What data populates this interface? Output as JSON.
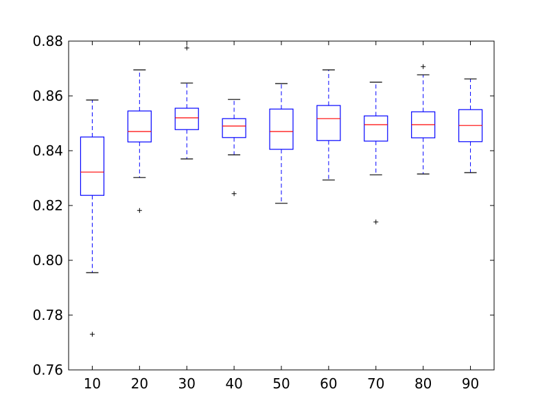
{
  "chart_data": {
    "type": "box",
    "title": "",
    "xlabel": "",
    "ylabel": "",
    "categories": [
      "10",
      "20",
      "30",
      "40",
      "50",
      "60",
      "70",
      "80",
      "90"
    ],
    "ylim": [
      0.76,
      0.88
    ],
    "yticks": [
      "0.76",
      "0.78",
      "0.80",
      "0.82",
      "0.84",
      "0.86",
      "0.88"
    ],
    "ytick_values": [
      0.76,
      0.78,
      0.8,
      0.82,
      0.84,
      0.86,
      0.88
    ],
    "grid": false,
    "legend": "none",
    "boxes": [
      {
        "category": "10",
        "whisker_low": 0.7955,
        "q1": 0.8237,
        "median": 0.8322,
        "q3": 0.845,
        "whisker_high": 0.8585,
        "outliers": [
          0.773
        ]
      },
      {
        "category": "20",
        "whisker_low": 0.8302,
        "q1": 0.8432,
        "median": 0.847,
        "q3": 0.8545,
        "whisker_high": 0.8695,
        "outliers": [
          0.8182
        ]
      },
      {
        "category": "30",
        "whisker_low": 0.837,
        "q1": 0.8477,
        "median": 0.852,
        "q3": 0.8555,
        "whisker_high": 0.8647,
        "outliers": [
          0.8775
        ]
      },
      {
        "category": "40",
        "whisker_low": 0.8385,
        "q1": 0.8448,
        "median": 0.849,
        "q3": 0.8517,
        "whisker_high": 0.8587,
        "outliers": [
          0.8243
        ]
      },
      {
        "category": "50",
        "whisker_low": 0.8208,
        "q1": 0.8405,
        "median": 0.847,
        "q3": 0.8552,
        "whisker_high": 0.8645,
        "outliers": []
      },
      {
        "category": "60",
        "whisker_low": 0.8293,
        "q1": 0.8437,
        "median": 0.8517,
        "q3": 0.8565,
        "whisker_high": 0.8695,
        "outliers": []
      },
      {
        "category": "70",
        "whisker_low": 0.8312,
        "q1": 0.8435,
        "median": 0.8495,
        "q3": 0.8527,
        "whisker_high": 0.865,
        "outliers": [
          0.814
        ]
      },
      {
        "category": "80",
        "whisker_low": 0.8315,
        "q1": 0.8447,
        "median": 0.8495,
        "q3": 0.8542,
        "whisker_high": 0.8677,
        "outliers": [
          0.8707
        ]
      },
      {
        "category": "90",
        "whisker_low": 0.832,
        "q1": 0.8433,
        "median": 0.8492,
        "q3": 0.855,
        "whisker_high": 0.8662,
        "outliers": []
      }
    ],
    "colors": {
      "box": "#0000ff",
      "median": "#ff0000",
      "whisker": "#0000ff",
      "cap": "#000000",
      "flier": "#000000",
      "axes": "#000000"
    }
  }
}
